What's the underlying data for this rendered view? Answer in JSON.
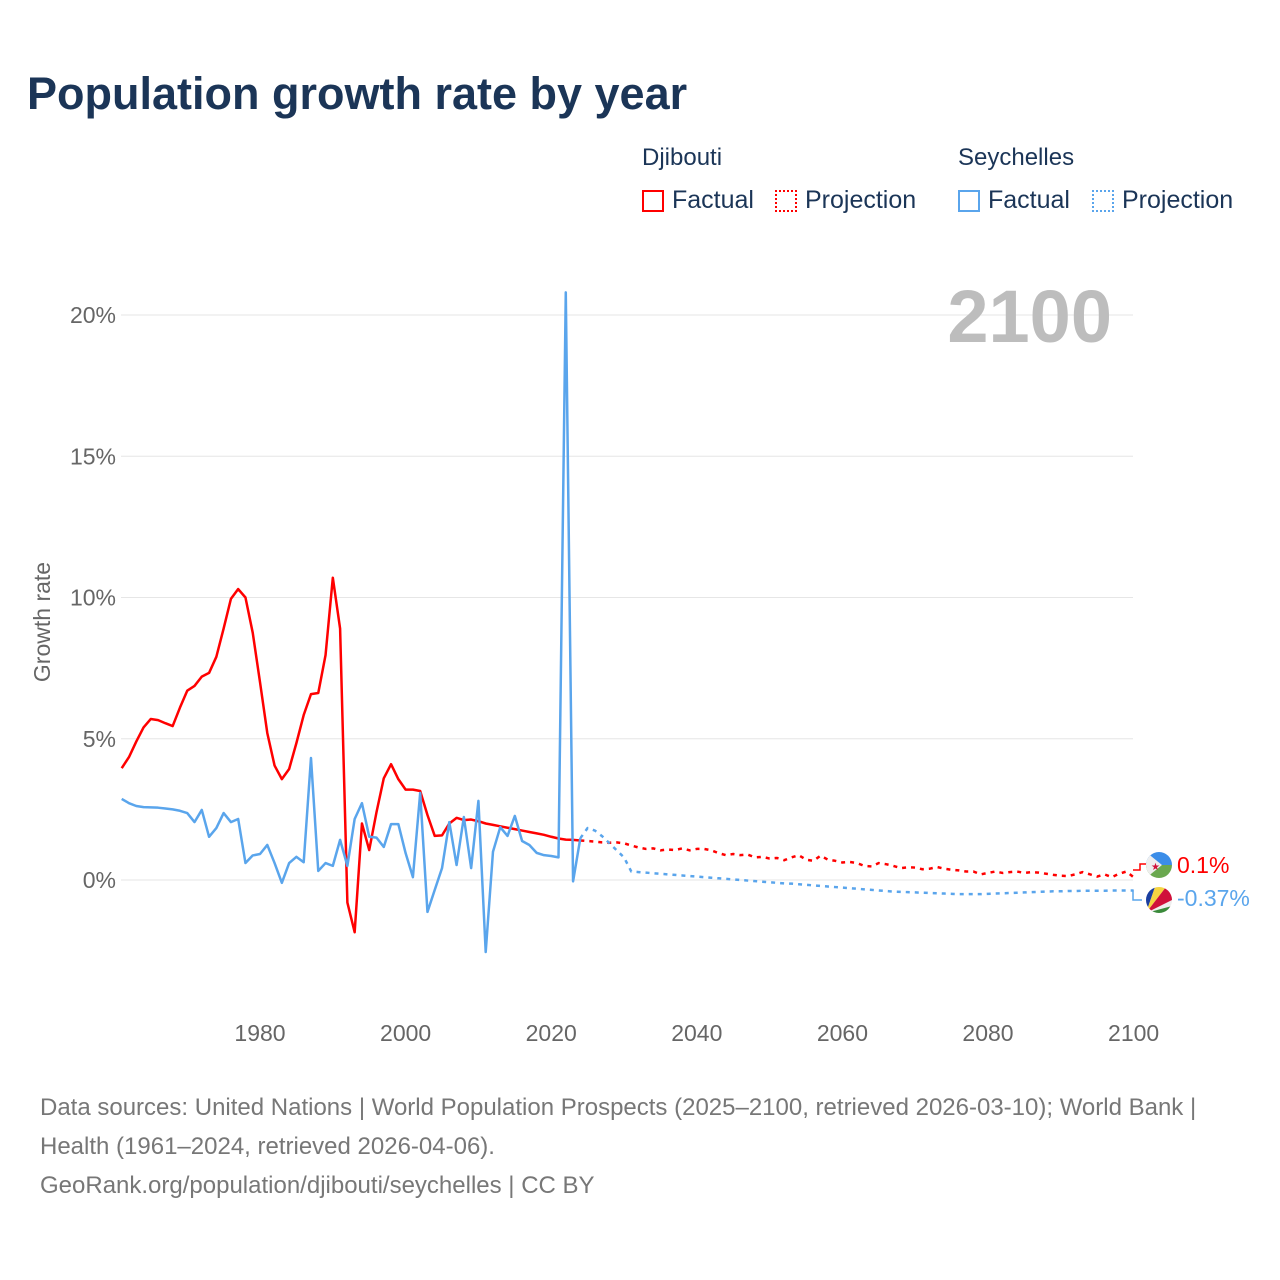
{
  "title": "Population growth rate by year",
  "legend": {
    "groups": [
      {
        "name": "Djibouti",
        "factual": "Factual",
        "projection": "Projection",
        "color": "#ff0000"
      },
      {
        "name": "Seychelles",
        "factual": "Factual",
        "projection": "Projection",
        "color": "#5aa5ec"
      }
    ]
  },
  "year_display": "2100",
  "end_labels": {
    "djibouti": "0.1%",
    "seychelles": "-0.37%"
  },
  "footer": {
    "line1": "Data sources: United Nations | World Population Prospects (2025–2100, retrieved 2026-03-10); World Bank | Health (1961–2024, retrieved 2026-04-06).",
    "line2": "GeoRank.org/population/djibouti/seychelles | CC BY"
  },
  "chart_data": {
    "type": "line",
    "title": "Population growth rate by year",
    "xlabel": "",
    "ylabel": "Growth rate",
    "xlim": [
      1961,
      2100
    ],
    "ylim": [
      -4,
      22
    ],
    "x_ticks": [
      1980,
      2000,
      2020,
      2040,
      2060,
      2080,
      2100
    ],
    "x_tick_labels": [
      "1980",
      "2000",
      "2020",
      "2040",
      "2060",
      "2080",
      "2100"
    ],
    "y_ticks": [
      0,
      5,
      10,
      15,
      20
    ],
    "y_tick_labels": [
      "0%",
      "5%",
      "10%",
      "15%",
      "20%"
    ],
    "grid": true,
    "legend_position": "top-right",
    "series": [
      {
        "name": "Djibouti",
        "kind": "factual",
        "color": "#ff0000",
        "start_year": 1961,
        "values": [
          3.96,
          4.35,
          4.9,
          5.4,
          5.7,
          5.66,
          5.55,
          5.45,
          6.1,
          6.7,
          6.87,
          7.2,
          7.33,
          7.9,
          8.9,
          9.95,
          10.3,
          10.0,
          8.75,
          7.0,
          5.2,
          4.05,
          3.57,
          3.93,
          4.85,
          5.84,
          6.58,
          6.62,
          7.96,
          10.7,
          8.9,
          -0.8,
          -1.85,
          2.0,
          1.06,
          2.4,
          3.6,
          4.1,
          3.57,
          3.2,
          3.2,
          3.15,
          2.3,
          1.56,
          1.58,
          2.0,
          2.2,
          2.12,
          2.14,
          2.08,
          2.0,
          1.95,
          1.9,
          1.85,
          1.8,
          1.75,
          1.7,
          1.65,
          1.6,
          1.53,
          1.47,
          1.43,
          1.42,
          1.4
        ]
      },
      {
        "name": "Djibouti",
        "kind": "projection",
        "color": "#ff0000",
        "start_year": 2025,
        "values": [
          1.38,
          1.36,
          1.33,
          1.32,
          1.33,
          1.3,
          1.22,
          1.15,
          1.1,
          1.12,
          1.05,
          1.08,
          1.06,
          1.12,
          1.05,
          1.1,
          1.1,
          1.05,
          0.95,
          0.88,
          0.92,
          0.88,
          0.9,
          0.8,
          0.82,
          0.76,
          0.78,
          0.7,
          0.8,
          0.88,
          0.72,
          0.68,
          0.86,
          0.72,
          0.68,
          0.62,
          0.64,
          0.6,
          0.5,
          0.48,
          0.6,
          0.56,
          0.5,
          0.42,
          0.45,
          0.44,
          0.38,
          0.4,
          0.46,
          0.4,
          0.36,
          0.34,
          0.3,
          0.3,
          0.2,
          0.25,
          0.3,
          0.25,
          0.28,
          0.3,
          0.25,
          0.28,
          0.26,
          0.22,
          0.18,
          0.15,
          0.14,
          0.2,
          0.28,
          0.2,
          0.12,
          0.2,
          0.1,
          0.22,
          0.3,
          0.1
        ]
      },
      {
        "name": "Seychelles",
        "kind": "factual",
        "color": "#5aa5ec",
        "start_year": 1961,
        "values": [
          2.87,
          2.72,
          2.62,
          2.58,
          2.57,
          2.56,
          2.53,
          2.5,
          2.45,
          2.37,
          2.05,
          2.48,
          1.53,
          1.84,
          2.37,
          2.05,
          2.16,
          0.6,
          0.87,
          0.92,
          1.24,
          0.6,
          -0.1,
          0.6,
          0.82,
          0.63,
          4.32,
          0.32,
          0.6,
          0.5,
          1.42,
          0.5,
          2.16,
          2.72,
          1.53,
          1.5,
          1.17,
          1.98,
          1.98,
          0.95,
          0.1,
          3.08,
          -1.13,
          -0.35,
          0.42,
          2.05,
          0.53,
          2.23,
          0.42,
          2.8,
          -2.55,
          1.0,
          1.87,
          1.56,
          2.27,
          1.38,
          1.24,
          0.96,
          0.88,
          0.85,
          0.8,
          20.8,
          -0.05,
          1.48
        ]
      },
      {
        "name": "Seychelles",
        "kind": "projection",
        "color": "#5aa5ec",
        "start_year": 2025,
        "values": [
          1.84,
          1.75,
          1.55,
          1.3,
          1.05,
          0.8,
          0.3,
          0.28,
          0.26,
          0.24,
          0.22,
          0.2,
          0.18,
          0.16,
          0.14,
          0.12,
          0.1,
          0.08,
          0.06,
          0.04,
          0.02,
          0.0,
          -0.02,
          -0.04,
          -0.06,
          -0.08,
          -0.1,
          -0.12,
          -0.13,
          -0.15,
          -0.17,
          -0.19,
          -0.21,
          -0.23,
          -0.25,
          -0.27,
          -0.29,
          -0.31,
          -0.33,
          -0.35,
          -0.37,
          -0.39,
          -0.41,
          -0.42,
          -0.43,
          -0.44,
          -0.45,
          -0.46,
          -0.47,
          -0.48,
          -0.49,
          -0.5,
          -0.5,
          -0.5,
          -0.5,
          -0.49,
          -0.48,
          -0.47,
          -0.46,
          -0.45,
          -0.44,
          -0.43,
          -0.42,
          -0.41,
          -0.4,
          -0.4,
          -0.39,
          -0.39,
          -0.38,
          -0.38,
          -0.38,
          -0.38,
          -0.37,
          -0.37,
          -0.37,
          -0.37
        ]
      }
    ]
  }
}
